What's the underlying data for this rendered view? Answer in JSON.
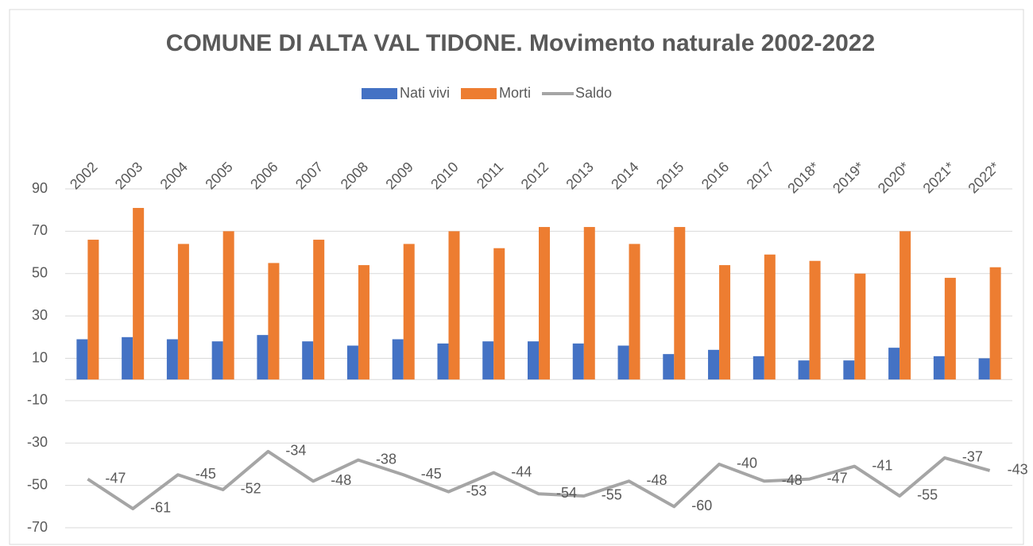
{
  "chart_data": {
    "type": "bar",
    "title": "COMUNE DI ALTA VAL TIDONE. Movimento naturale 2002-2022",
    "categories": [
      "2002",
      "2003",
      "2004",
      "2005",
      "2006",
      "2007",
      "2008",
      "2009",
      "2010",
      "2011",
      "2012",
      "2013",
      "2014",
      "2015",
      "2016",
      "2017",
      "2018*",
      "2019*",
      "2020*",
      "2021*",
      "2022*"
    ],
    "series": [
      {
        "name": "Nati vivi",
        "color": "#4472c4",
        "type": "bar",
        "values": [
          19,
          20,
          19,
          18,
          21,
          18,
          16,
          19,
          17,
          18,
          18,
          17,
          16,
          12,
          14,
          11,
          9,
          9,
          15,
          11,
          10
        ]
      },
      {
        "name": "Morti",
        "color": "#ed7d31",
        "type": "bar",
        "values": [
          66,
          81,
          64,
          70,
          55,
          66,
          54,
          64,
          70,
          62,
          72,
          72,
          64,
          72,
          54,
          59,
          56,
          50,
          70,
          48,
          53
        ]
      },
      {
        "name": "Saldo",
        "color": "#a5a5a5",
        "type": "line",
        "values": [
          -47,
          -61,
          -45,
          -52,
          -34,
          -48,
          -38,
          -45,
          -53,
          -44,
          -54,
          -55,
          -48,
          -60,
          -40,
          -48,
          -47,
          -41,
          -55,
          -37,
          -43
        ]
      }
    ],
    "ylim": [
      -70,
      90
    ],
    "yticks": [
      -70,
      -50,
      -30,
      -10,
      10,
      30,
      50,
      70,
      90
    ],
    "grid": true,
    "legend": "top"
  }
}
